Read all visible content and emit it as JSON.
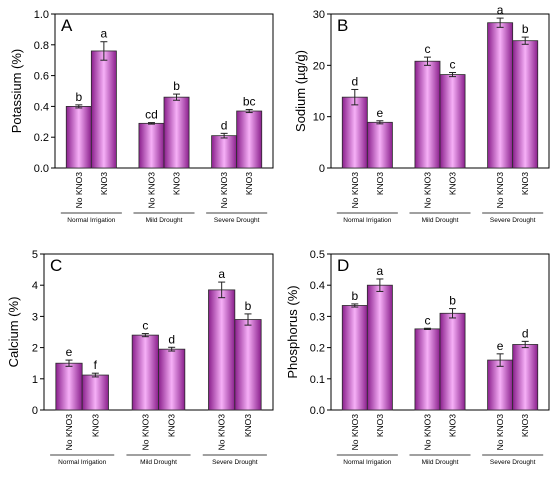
{
  "figure": {
    "gradient_colors": {
      "edge": "#8a1f8c",
      "center": "#f6b0f7"
    },
    "bar_outline": "#2b2b2b"
  },
  "chart_data": [
    {
      "type": "bar",
      "panel": "A",
      "ylabel": "Potassium (%)",
      "ylim": [
        0.0,
        1.0
      ],
      "yticks": [
        "0.0",
        "0.2",
        "0.4",
        "0.6",
        "0.8",
        "1.0"
      ],
      "groups": [
        "Normal Irrigation",
        "Mild Drought",
        "Severe Drought"
      ],
      "categories": [
        "No KNO3",
        "KNO3"
      ],
      "values": [
        [
          0.4,
          0.76
        ],
        [
          0.29,
          0.46
        ],
        [
          0.21,
          0.37
        ]
      ],
      "errors": [
        [
          0.01,
          0.06
        ],
        [
          0.005,
          0.02
        ],
        [
          0.015,
          0.01
        ]
      ],
      "letters": [
        [
          "b",
          "a"
        ],
        [
          "cd",
          "b"
        ],
        [
          "d",
          "bc"
        ]
      ],
      "grid": false
    },
    {
      "type": "bar",
      "panel": "B",
      "ylabel": "Sodium (µg/g)",
      "ylim": [
        0,
        30
      ],
      "yticks": [
        "0",
        "10",
        "20",
        "30"
      ],
      "groups": [
        "Normal Irrigation",
        "Mild Drought",
        "Severe Drought"
      ],
      "categories": [
        "No KNO3",
        "KNO3"
      ],
      "values": [
        [
          13.8,
          8.9
        ],
        [
          20.8,
          18.2
        ],
        [
          28.3,
          24.8
        ]
      ],
      "errors": [
        [
          1.5,
          0.3
        ],
        [
          0.8,
          0.4
        ],
        [
          0.9,
          0.7
        ]
      ],
      "letters": [
        [
          "d",
          "e"
        ],
        [
          "c",
          "c"
        ],
        [
          "a",
          "b"
        ]
      ],
      "grid": false
    },
    {
      "type": "bar",
      "panel": "C",
      "ylabel": "Calcium (%)",
      "ylim": [
        0,
        5
      ],
      "yticks": [
        "0",
        "1",
        "2",
        "3",
        "4",
        "5"
      ],
      "groups": [
        "Normal Irrigation",
        "Mild Drought",
        "Severe Drought"
      ],
      "categories": [
        "No KNO3",
        "KNO3"
      ],
      "values": [
        [
          1.5,
          1.12
        ],
        [
          2.4,
          1.95
        ],
        [
          3.85,
          2.9
        ]
      ],
      "errors": [
        [
          0.1,
          0.06
        ],
        [
          0.05,
          0.06
        ],
        [
          0.25,
          0.18
        ]
      ],
      "letters": [
        [
          "e",
          "f"
        ],
        [
          "c",
          "d"
        ],
        [
          "a",
          "b"
        ]
      ],
      "grid": false
    },
    {
      "type": "bar",
      "panel": "D",
      "ylabel": "Phosphorus (%)",
      "ylim": [
        0.0,
        0.5
      ],
      "yticks": [
        "0.0",
        "0.1",
        "0.2",
        "0.3",
        "0.4",
        "0.5"
      ],
      "groups": [
        "Normal Irrigation",
        "Mild Drought",
        "Severe Drought"
      ],
      "categories": [
        "No KNO3",
        "KNO3"
      ],
      "values": [
        [
          0.335,
          0.4
        ],
        [
          0.26,
          0.31
        ],
        [
          0.16,
          0.21
        ]
      ],
      "errors": [
        [
          0.005,
          0.02
        ],
        [
          0.002,
          0.015
        ],
        [
          0.02,
          0.01
        ]
      ],
      "letters": [
        [
          "b",
          "a"
        ],
        [
          "c",
          "b"
        ],
        [
          "e",
          "d"
        ]
      ],
      "grid": false
    }
  ]
}
